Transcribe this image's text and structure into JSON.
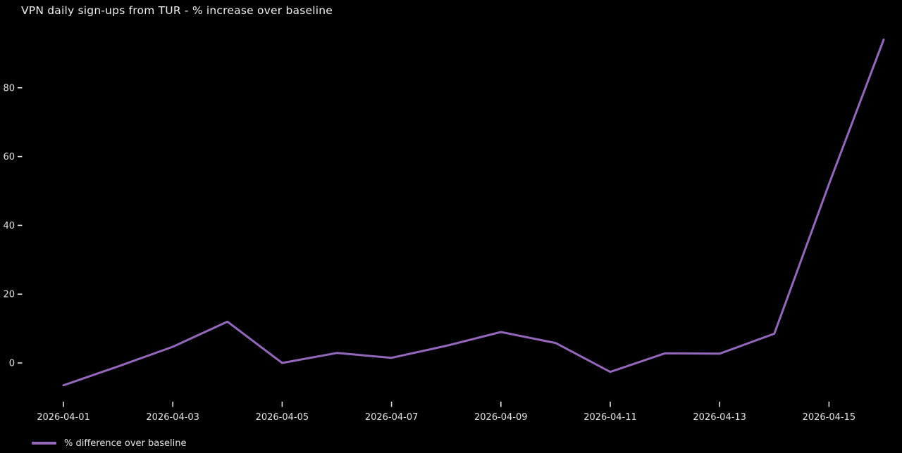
{
  "chart_data": {
    "type": "line",
    "title": "VPN daily sign-ups from TUR - % increase over baseline",
    "x": [
      "2026-04-01",
      "2026-04-02",
      "2026-04-03",
      "2026-04-04",
      "2026-04-05",
      "2026-04-06",
      "2026-04-07",
      "2026-04-08",
      "2026-04-09",
      "2026-04-10",
      "2026-04-11",
      "2026-04-12",
      "2026-04-13",
      "2026-04-14",
      "2026-04-15",
      "2026-04-16"
    ],
    "series": [
      {
        "name": "% difference over baseline",
        "color": "#9467bd",
        "values": [
          -6.5,
          -1,
          4.7,
          12,
          0,
          2.9,
          1.5,
          5,
          9,
          5.8,
          -2.6,
          2.8,
          2.7,
          8.5,
          52,
          94
        ]
      }
    ],
    "xlabel": "",
    "ylabel": "",
    "yticks": [
      0,
      20,
      40,
      60,
      80
    ],
    "xtick_labels": [
      "2026-04-01",
      "2026-04-03",
      "2026-04-05",
      "2026-04-07",
      "2026-04-09",
      "2026-04-11",
      "2026-04-13",
      "2026-04-15"
    ],
    "ylim": [
      -13,
      97
    ],
    "grid": false,
    "legend_position": "lower-left",
    "background": "#000000",
    "text_color": "#e2e2e2"
  }
}
